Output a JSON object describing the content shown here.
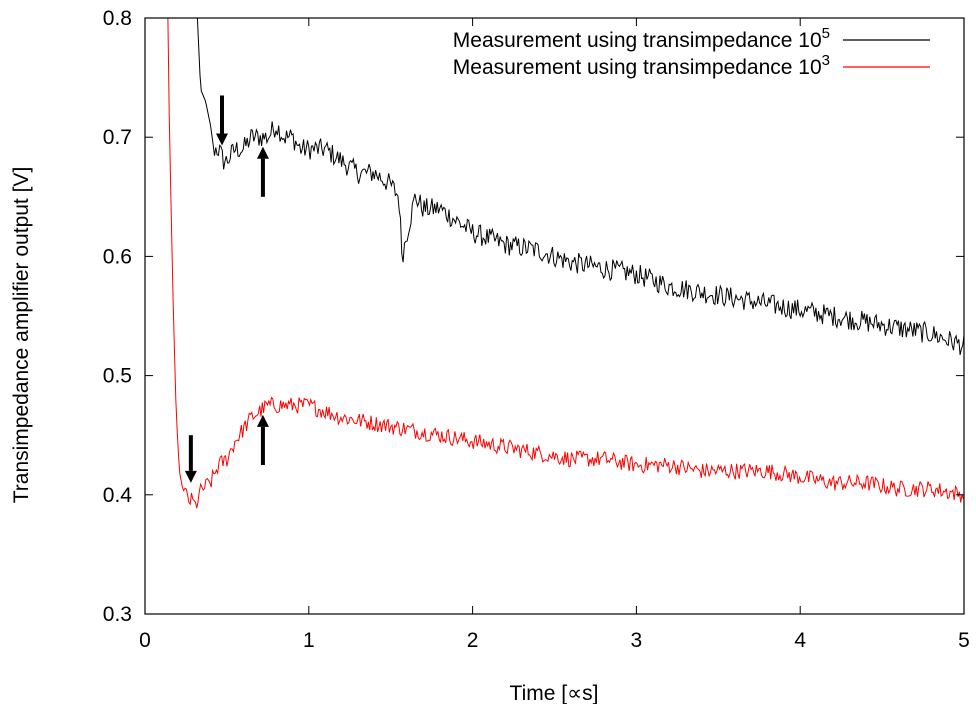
{
  "chart_data": {
    "type": "line",
    "xlabel": "Time [∝s]",
    "ylabel": "Transimpedance amplifier output [V]",
    "xlim": [
      0,
      5
    ],
    "ylim": [
      0.3,
      0.8
    ],
    "xticks": [
      0,
      1,
      2,
      3,
      4,
      5
    ],
    "xtick_labels": [
      "0",
      "1",
      "2",
      "3",
      "4",
      "5"
    ],
    "yticks": [
      0.3,
      0.4,
      0.5,
      0.6,
      0.7,
      0.8
    ],
    "ytick_labels": [
      "0.3",
      "0.4",
      "0.5",
      "0.6",
      "0.7",
      "0.8"
    ],
    "grid": false,
    "legend_position": "top-right",
    "series": [
      {
        "name": "Measurement using transimpedance 10",
        "name_sup": "5",
        "color": "#000000",
        "x": [
          0.32,
          0.34,
          0.37,
          0.4,
          0.42,
          0.45,
          0.48,
          0.5,
          0.55,
          0.6,
          0.65,
          0.7,
          0.75,
          0.8,
          0.85,
          0.9,
          0.95,
          1.0,
          1.1,
          1.2,
          1.3,
          1.4,
          1.5,
          1.55,
          1.57,
          1.6,
          1.65,
          1.7,
          1.8,
          1.9,
          2.0,
          2.2,
          2.4,
          2.6,
          2.8,
          3.0,
          3.2,
          3.4,
          3.6,
          3.8,
          4.0,
          4.2,
          4.4,
          4.6,
          4.8,
          4.9,
          5.0
        ],
        "y": [
          0.8,
          0.74,
          0.73,
          0.71,
          0.69,
          0.69,
          0.68,
          0.68,
          0.69,
          0.69,
          0.7,
          0.7,
          0.7,
          0.71,
          0.7,
          0.7,
          0.69,
          0.69,
          0.69,
          0.68,
          0.67,
          0.67,
          0.66,
          0.65,
          0.6,
          0.62,
          0.65,
          0.64,
          0.64,
          0.63,
          0.62,
          0.61,
          0.605,
          0.595,
          0.59,
          0.585,
          0.575,
          0.57,
          0.565,
          0.56,
          0.555,
          0.55,
          0.545,
          0.54,
          0.535,
          0.53,
          0.525
        ],
        "ends_above_at_x": 0.33
      },
      {
        "name": "Measurement using transimpedance 10",
        "name_sup": "3",
        "color": "#ff0000",
        "x": [
          0.14,
          0.15,
          0.17,
          0.19,
          0.21,
          0.23,
          0.25,
          0.27,
          0.29,
          0.31,
          0.33,
          0.35,
          0.4,
          0.45,
          0.5,
          0.55,
          0.6,
          0.65,
          0.7,
          0.75,
          0.8,
          0.9,
          1.0,
          1.1,
          1.2,
          1.4,
          1.6,
          1.8,
          2.0,
          2.2,
          2.4,
          2.6,
          2.8,
          3.0,
          3.2,
          3.4,
          3.6,
          3.8,
          4.0,
          4.2,
          4.4,
          4.6,
          4.8,
          5.0
        ],
        "y": [
          0.8,
          0.7,
          0.57,
          0.47,
          0.42,
          0.405,
          0.4,
          0.395,
          0.395,
          0.39,
          0.4,
          0.405,
          0.41,
          0.425,
          0.43,
          0.445,
          0.455,
          0.465,
          0.47,
          0.475,
          0.475,
          0.475,
          0.475,
          0.47,
          0.465,
          0.46,
          0.455,
          0.45,
          0.445,
          0.44,
          0.435,
          0.43,
          0.43,
          0.425,
          0.425,
          0.42,
          0.42,
          0.42,
          0.415,
          0.41,
          0.41,
          0.405,
          0.405,
          0.4
        ]
      }
    ],
    "annotations": [
      {
        "type": "arrow-down",
        "x": 0.47,
        "y_from": 0.735,
        "y_to": 0.693
      },
      {
        "type": "arrow-up",
        "x": 0.72,
        "y_from": 0.65,
        "y_to": 0.692
      },
      {
        "type": "arrow-down",
        "x": 0.28,
        "y_from": 0.45,
        "y_to": 0.41
      },
      {
        "type": "arrow-up",
        "x": 0.72,
        "y_from": 0.425,
        "y_to": 0.467
      }
    ]
  }
}
